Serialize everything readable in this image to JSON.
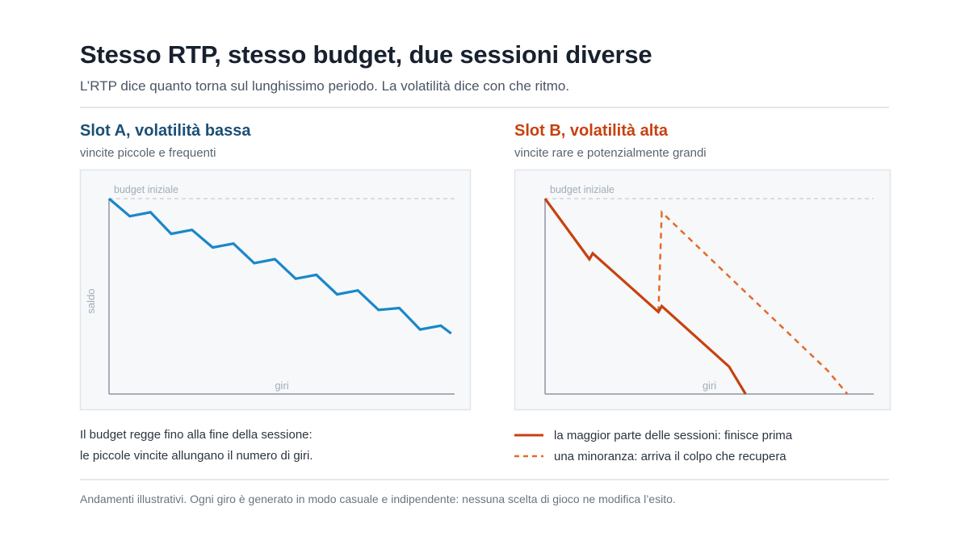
{
  "header": {
    "title": "Stesso RTP, stesso budget, due sessioni diverse",
    "subtitle": "L’RTP dice quanto torna sul lunghissimo periodo. La volatilità dice con che ritmo."
  },
  "colors": {
    "slot_a": "#1a87c9",
    "slot_a_title": "#1b4f75",
    "slot_b": "#c8410f",
    "slot_b_dashed": "#e56a2b",
    "panel_bg": "#f6f8fa",
    "panel_border": "#e1e5ea",
    "axis": "#8d96a3",
    "axis_text": "#a3adb9",
    "reference_line": "#c5cdd6"
  },
  "chart_data": [
    {
      "type": "line",
      "title": "Slot A, volatilità bassa",
      "subtitle": "vincite piccole e frequenti",
      "xlabel": "giri",
      "ylabel": "saldo",
      "xlim": [
        0,
        10
      ],
      "ylim": [
        0,
        100
      ],
      "reference_line": {
        "label": "budget iniziale",
        "y": 100
      },
      "grid": false,
      "series": [
        {
          "style": "solid",
          "x": [
            0,
            0.6,
            1.2,
            1.8,
            2.4,
            3.0,
            3.6,
            4.2,
            4.8,
            5.4,
            6.0,
            6.6,
            7.2,
            7.8,
            8.4,
            9.0,
            9.6,
            9.9
          ],
          "y": [
            100,
            91,
            93,
            82,
            84,
            75,
            77,
            67,
            69,
            59,
            61,
            51,
            53,
            43,
            44,
            33,
            35,
            31
          ]
        }
      ]
    },
    {
      "type": "line",
      "title": "Slot B, volatilità alta",
      "subtitle": "vincite rare e potenzialmente grandi",
      "xlabel": "giri",
      "ylabel": "",
      "xlim": [
        0,
        10
      ],
      "ylim": [
        0,
        100
      ],
      "reference_line": {
        "label": "budget iniziale",
        "y": 100
      },
      "grid": false,
      "series": [
        {
          "name": "la maggior parte delle sessioni: finisce prima",
          "style": "solid",
          "x": [
            0,
            1.35,
            1.45,
            3.45,
            3.55,
            5.6,
            6.1
          ],
          "y": [
            100,
            69,
            72,
            42,
            45,
            14,
            0
          ]
        },
        {
          "name": "una minoranza: arriva il colpo che recupera",
          "style": "dashed",
          "x": [
            3.45,
            3.55,
            8.6,
            9.2
          ],
          "y": [
            42,
            93,
            12,
            0
          ]
        }
      ]
    }
  ],
  "notes": {
    "slot_a_line1": "Il budget regge fino alla fine della sessione:",
    "slot_a_line2": "le piccole vincite allungano il numero di giri."
  },
  "footnote": "Andamenti illustrativi. Ogni giro è generato in modo casuale e indipendente: nessuna scelta di gioco ne modifica l’esito."
}
